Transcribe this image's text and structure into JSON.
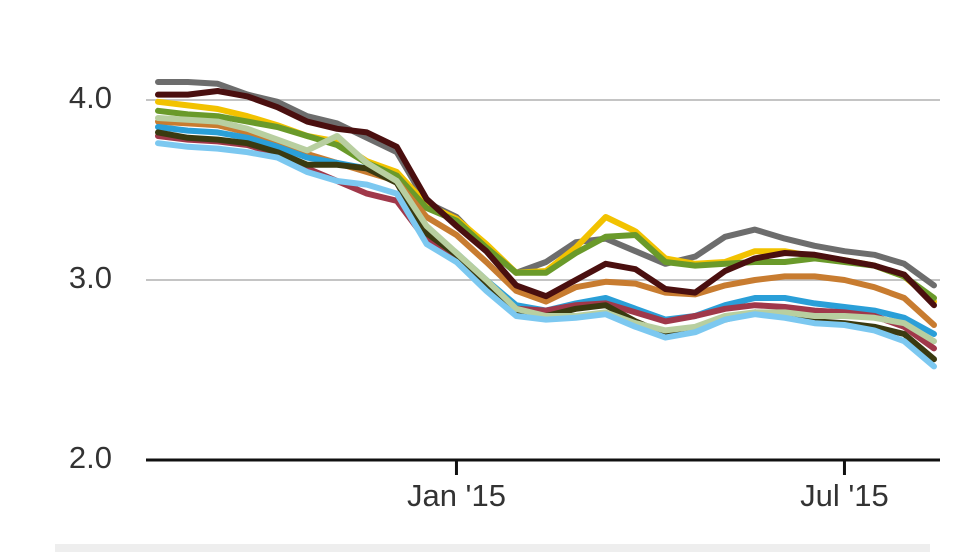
{
  "chart_data": {
    "type": "line",
    "categories": [
      null,
      null,
      null,
      null,
      null,
      null,
      null,
      null,
      null,
      null,
      "Jan '15",
      null,
      null,
      null,
      null,
      null,
      null,
      null,
      null,
      null,
      null,
      null,
      null,
      "Jul '15",
      null,
      null,
      null
    ],
    "ylim": [
      2.0,
      4.3
    ],
    "yticks": [
      {
        "value": 2,
        "label": "2.0"
      },
      {
        "value": 3,
        "label": "3.0"
      },
      {
        "value": 4,
        "label": "4.0"
      }
    ],
    "grid": true,
    "series": [
      {
        "color": "#6d6d6d",
        "values": [
          4.1,
          4.1,
          4.09,
          4.03,
          3.99,
          3.91,
          3.87,
          3.79,
          3.71,
          3.43,
          3.35,
          3.18,
          3.04,
          3.1,
          3.21,
          3.23,
          3.16,
          3.09,
          3.13,
          3.24,
          3.28,
          3.23,
          3.19,
          3.16,
          3.14,
          3.09,
          2.97
        ]
      },
      {
        "color": "#f2c200",
        "values": [
          3.99,
          3.97,
          3.95,
          3.91,
          3.86,
          3.8,
          3.77,
          3.66,
          3.6,
          3.42,
          3.34,
          3.2,
          3.04,
          3.05,
          3.18,
          3.35,
          3.27,
          3.12,
          3.09,
          3.1,
          3.16,
          3.16,
          3.13,
          3.11,
          3.08,
          3.02,
          2.88
        ]
      },
      {
        "color": "#6a9a2a",
        "values": [
          3.94,
          3.92,
          3.91,
          3.88,
          3.85,
          3.8,
          3.75,
          3.65,
          3.58,
          3.4,
          3.33,
          3.18,
          3.04,
          3.04,
          3.15,
          3.24,
          3.25,
          3.1,
          3.08,
          3.09,
          3.1,
          3.1,
          3.12,
          3.1,
          3.08,
          3.02,
          2.9
        ]
      },
      {
        "color": "#c87c30",
        "values": [
          3.88,
          3.87,
          3.86,
          3.82,
          3.76,
          3.7,
          3.65,
          3.6,
          3.55,
          3.35,
          3.25,
          3.1,
          2.94,
          2.88,
          2.96,
          2.99,
          2.98,
          2.93,
          2.92,
          2.97,
          3.0,
          3.02,
          3.02,
          3.0,
          2.96,
          2.9,
          2.75
        ]
      },
      {
        "color": "#2a9fd8",
        "values": [
          3.85,
          3.83,
          3.82,
          3.79,
          3.74,
          3.68,
          3.65,
          3.62,
          3.55,
          3.28,
          3.15,
          3.0,
          2.86,
          2.83,
          2.87,
          2.9,
          2.84,
          2.78,
          2.8,
          2.86,
          2.9,
          2.9,
          2.87,
          2.85,
          2.83,
          2.79,
          2.7
        ]
      },
      {
        "color": "#a0384a",
        "values": [
          3.8,
          3.78,
          3.77,
          3.75,
          3.7,
          3.62,
          3.55,
          3.48,
          3.44,
          3.22,
          3.12,
          2.98,
          2.84,
          2.83,
          2.86,
          2.87,
          2.82,
          2.77,
          2.8,
          2.84,
          2.86,
          2.85,
          2.83,
          2.82,
          2.8,
          2.74,
          2.62
        ]
      },
      {
        "color": "#3a3a10",
        "values": [
          3.82,
          3.79,
          3.78,
          3.76,
          3.71,
          3.64,
          3.64,
          3.62,
          3.54,
          3.26,
          3.14,
          2.98,
          2.82,
          2.8,
          2.84,
          2.86,
          2.77,
          2.7,
          2.72,
          2.78,
          2.82,
          2.8,
          2.77,
          2.76,
          2.74,
          2.7,
          2.56
        ]
      },
      {
        "color": "#b8cfa0",
        "values": [
          3.9,
          3.89,
          3.88,
          3.84,
          3.78,
          3.72,
          3.8,
          3.65,
          3.55,
          3.3,
          3.15,
          3.0,
          2.84,
          2.8,
          2.8,
          2.82,
          2.76,
          2.72,
          2.74,
          2.8,
          2.82,
          2.82,
          2.8,
          2.8,
          2.79,
          2.76,
          2.66
        ]
      },
      {
        "color": "#7cc8f0",
        "values": [
          3.76,
          3.74,
          3.73,
          3.71,
          3.68,
          3.6,
          3.55,
          3.53,
          3.48,
          3.2,
          3.1,
          2.94,
          2.8,
          2.78,
          2.79,
          2.81,
          2.74,
          2.68,
          2.71,
          2.78,
          2.81,
          2.79,
          2.76,
          2.75,
          2.72,
          2.66,
          2.52
        ]
      },
      {
        "color": "#4a0f0f",
        "values": [
          4.03,
          4.03,
          4.05,
          4.02,
          3.96,
          3.88,
          3.84,
          3.82,
          3.74,
          3.45,
          3.3,
          3.16,
          2.97,
          2.91,
          3.0,
          3.09,
          3.06,
          2.95,
          2.93,
          3.05,
          3.12,
          3.15,
          3.14,
          3.11,
          3.08,
          3.03,
          2.86
        ]
      }
    ]
  }
}
